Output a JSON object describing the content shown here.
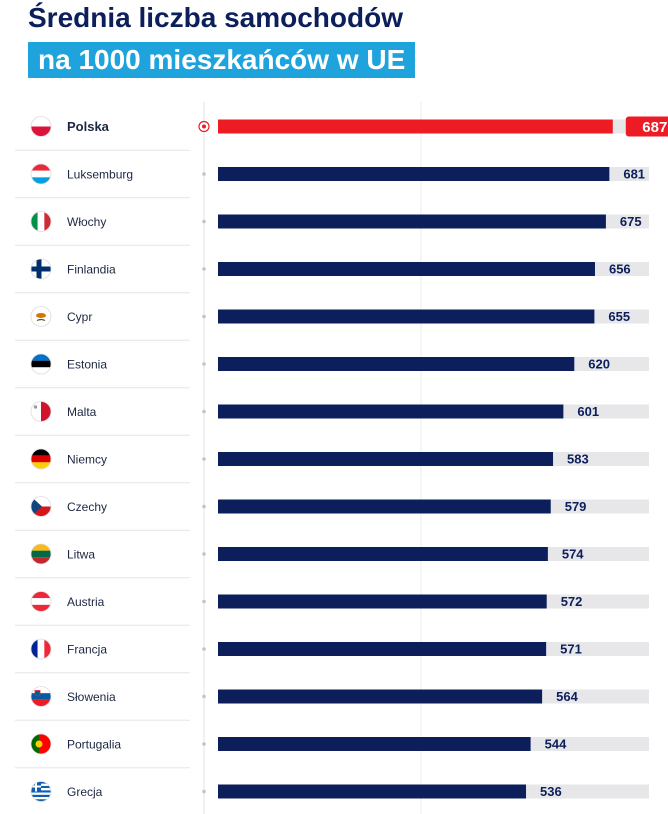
{
  "header": {
    "title_line1": "Średnia liczba samochodów",
    "title_line2": "na 1000 mieszkańców w UE"
  },
  "colors": {
    "highlight_bar": "#ed1c24",
    "bar": "#0c1f5b",
    "track": "#e7e7e9",
    "title_bg": "#1fa3dd",
    "title_text": "#0c1f5b"
  },
  "chart_data": {
    "type": "bar",
    "orientation": "horizontal",
    "title": "Średnia liczba samochodów na 1000 mieszkańców w UE",
    "categories": [
      "Polska",
      "Luksemburg",
      "Włochy",
      "Finlandia",
      "Cypr",
      "Estonia",
      "Malta",
      "Niemcy",
      "Czechy",
      "Litwa",
      "Austria",
      "Francja",
      "Słowenia",
      "Portugalia",
      "Grecja"
    ],
    "values": [
      687,
      681,
      675,
      656,
      655,
      620,
      601,
      583,
      579,
      574,
      572,
      571,
      564,
      544,
      536
    ],
    "highlight": "Polska",
    "flag_icons": [
      "flag-pl-icon",
      "flag-lu-icon",
      "flag-it-icon",
      "flag-fi-icon",
      "flag-cy-icon",
      "flag-ee-icon",
      "flag-mt-icon",
      "flag-de-icon",
      "flag-cz-icon",
      "flag-lt-icon",
      "flag-at-icon",
      "flag-fr-icon",
      "flag-si-icon",
      "flag-pt-icon",
      "flag-gr-icon"
    ],
    "xlim": [
      0,
      750
    ],
    "grid": true,
    "xlabel": "",
    "ylabel": ""
  }
}
